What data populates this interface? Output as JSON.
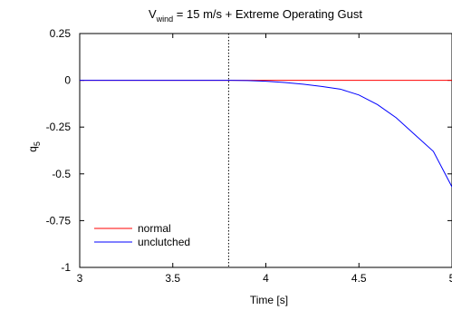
{
  "chart_data": {
    "type": "line",
    "title": {
      "prefix": "V",
      "subscript": "wind",
      "suffix": " = 15 m/s + Extreme Operating Gust"
    },
    "xlabel": "Time [s]",
    "ylabel": {
      "base": "q",
      "subscript": "5"
    },
    "xlim": [
      3,
      5
    ],
    "ylim": [
      -1,
      0.25
    ],
    "xticks": [
      {
        "value": 3,
        "label": "3"
      },
      {
        "value": 3.5,
        "label": "3.5"
      },
      {
        "value": 4,
        "label": "4"
      },
      {
        "value": 4.5,
        "label": "4.5"
      },
      {
        "value": 5,
        "label": "5"
      }
    ],
    "yticks": [
      {
        "value": 0.25,
        "label": "0.25"
      },
      {
        "value": 0,
        "label": "0"
      },
      {
        "value": -0.25,
        "label": "-0.25"
      },
      {
        "value": -0.5,
        "label": "-0.5"
      },
      {
        "value": -0.75,
        "label": "-0.75"
      },
      {
        "value": -1,
        "label": "-1"
      }
    ],
    "grid": false,
    "legend_position": "bottom-left",
    "vertical_marker": {
      "x": 3.8,
      "style": "dotted",
      "color": "#000000"
    },
    "series": [
      {
        "name": "normal",
        "color": "#ff0000",
        "x": [
          3.0,
          3.5,
          4.0,
          4.5,
          5.0
        ],
        "y": [
          0,
          0,
          0,
          0,
          0
        ]
      },
      {
        "name": "unclutched",
        "color": "#0000ff",
        "x": [
          3.0,
          3.5,
          3.8,
          3.9,
          4.0,
          4.1,
          4.2,
          4.3,
          4.4,
          4.5,
          4.6,
          4.7,
          4.8,
          4.9,
          5.0
        ],
        "y": [
          0,
          0,
          0,
          -0.0013,
          -0.0052,
          -0.0118,
          -0.021,
          -0.0327,
          -0.0471,
          -0.0784,
          -0.13,
          -0.2,
          -0.29,
          -0.38,
          -0.57
        ]
      }
    ]
  }
}
